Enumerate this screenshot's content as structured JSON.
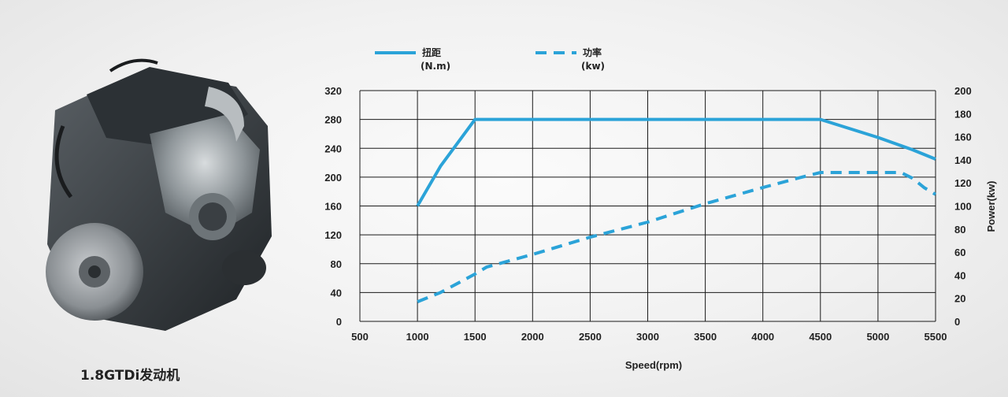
{
  "engine": {
    "label": "1.8GTDi发动机",
    "image": "engine-photo"
  },
  "colors": {
    "series": "#2ba3d8",
    "grid": "#1a1a1a"
  },
  "chart_data": {
    "type": "line",
    "title": "",
    "xlabel": "Speed(rpm)",
    "ylabel": "",
    "y2label": "Power(kw)",
    "xlim": [
      500,
      5500
    ],
    "ylim": [
      0,
      320
    ],
    "y2lim": [
      0,
      200
    ],
    "x_ticks": [
      500,
      1000,
      1500,
      2000,
      2500,
      3000,
      3500,
      4000,
      4500,
      5000,
      5500
    ],
    "y_ticks": [
      0,
      40,
      80,
      120,
      160,
      200,
      240,
      280,
      320
    ],
    "y2_ticks": [
      0,
      20,
      40,
      60,
      80,
      100,
      120,
      140,
      160,
      180,
      200
    ],
    "legend": [
      {
        "name": "扭距",
        "unit": "(N.m)",
        "style": "solid"
      },
      {
        "name": "功率",
        "unit": "(kw)",
        "style": "dashed"
      }
    ],
    "series": [
      {
        "name": "扭距",
        "unit": "N.m",
        "axis": "left",
        "style": "solid",
        "x": [
          1000,
          1200,
          1500,
          2000,
          3000,
          4000,
          4500,
          5000,
          5300,
          5500
        ],
        "values": [
          160,
          215,
          280,
          280,
          280,
          280,
          280,
          255,
          238,
          225
        ]
      },
      {
        "name": "功率",
        "unit": "kw",
        "axis": "right",
        "style": "dashed",
        "x": [
          1000,
          1200,
          1500,
          1600,
          2000,
          2500,
          3000,
          3500,
          4000,
          4300,
          4500,
          4750,
          5000,
          5200,
          5300,
          5400,
          5500
        ],
        "values": [
          17,
          25,
          41,
          47,
          58,
          73,
          86,
          102,
          116,
          124,
          129,
          129,
          129,
          129,
          124,
          116,
          110
        ]
      }
    ]
  }
}
